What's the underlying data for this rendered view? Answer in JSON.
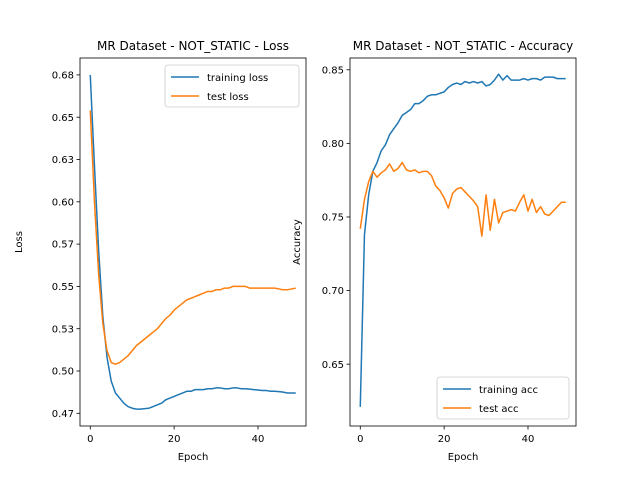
{
  "chart_data": [
    {
      "type": "line",
      "title": "MR Dataset - NOT_STATIC - Loss",
      "xlabel": "Epoch",
      "ylabel": "Loss",
      "xlim": [
        -2.45,
        51.45
      ],
      "ylim": [
        0.4675,
        0.685
      ],
      "xticks": [
        0,
        20,
        40
      ],
      "yticks": [
        0.475,
        0.5,
        0.525,
        0.55,
        0.575,
        0.6,
        0.625,
        0.65,
        0.675
      ],
      "grid": false,
      "legend": "top-right",
      "x": [
        0,
        1,
        2,
        3,
        4,
        5,
        6,
        7,
        8,
        9,
        10,
        11,
        12,
        13,
        14,
        15,
        16,
        17,
        18,
        19,
        20,
        21,
        22,
        23,
        24,
        25,
        26,
        27,
        28,
        29,
        30,
        31,
        32,
        33,
        34,
        35,
        36,
        37,
        38,
        39,
        40,
        41,
        42,
        43,
        44,
        45,
        46,
        47,
        48,
        49
      ],
      "series": [
        {
          "name": "training loss",
          "color": "#1f77b4",
          "values": [
            0.675,
            0.621,
            0.571,
            0.532,
            0.508,
            0.494,
            0.487,
            0.484,
            0.481,
            0.479,
            0.478,
            0.4775,
            0.4775,
            0.4778,
            0.478,
            0.479,
            0.48,
            0.481,
            0.483,
            0.484,
            0.485,
            0.486,
            0.487,
            0.488,
            0.488,
            0.489,
            0.489,
            0.489,
            0.4895,
            0.4895,
            0.49,
            0.49,
            0.4895,
            0.4895,
            0.49,
            0.49,
            0.4895,
            0.4895,
            0.4893,
            0.489,
            0.4888,
            0.4885,
            0.4885,
            0.488,
            0.488,
            0.4878,
            0.4875,
            0.487,
            0.487,
            0.487
          ]
        },
        {
          "name": "test loss",
          "color": "#ff7f0e",
          "values": [
            0.654,
            0.6,
            0.557,
            0.528,
            0.512,
            0.505,
            0.504,
            0.505,
            0.507,
            0.509,
            0.512,
            0.515,
            0.517,
            0.519,
            0.521,
            0.523,
            0.525,
            0.528,
            0.531,
            0.533,
            0.536,
            0.538,
            0.54,
            0.542,
            0.543,
            0.544,
            0.545,
            0.546,
            0.547,
            0.547,
            0.548,
            0.548,
            0.549,
            0.549,
            0.55,
            0.55,
            0.55,
            0.55,
            0.549,
            0.549,
            0.549,
            0.549,
            0.549,
            0.549,
            0.549,
            0.5485,
            0.548,
            0.548,
            0.5485,
            0.549
          ]
        }
      ]
    },
    {
      "type": "line",
      "title": "MR Dataset - NOT_STATIC - Accuracy",
      "xlabel": "Epoch",
      "ylabel": "Accuracy",
      "xlim": [
        -2.45,
        51.45
      ],
      "ylim": [
        0.608,
        0.858
      ],
      "xticks": [
        0,
        20,
        40
      ],
      "yticks": [
        0.65,
        0.7,
        0.75,
        0.8,
        0.85
      ],
      "grid": false,
      "legend": "bottom-right",
      "x": [
        0,
        1,
        2,
        3,
        4,
        5,
        6,
        7,
        8,
        9,
        10,
        11,
        12,
        13,
        14,
        15,
        16,
        17,
        18,
        19,
        20,
        21,
        22,
        23,
        24,
        25,
        26,
        27,
        28,
        29,
        30,
        31,
        32,
        33,
        34,
        35,
        36,
        37,
        38,
        39,
        40,
        41,
        42,
        43,
        44,
        45,
        46,
        47,
        48,
        49
      ],
      "series": [
        {
          "name": "training acc",
          "color": "#1f77b4",
          "values": [
            0.621,
            0.738,
            0.765,
            0.781,
            0.787,
            0.795,
            0.799,
            0.806,
            0.81,
            0.814,
            0.819,
            0.821,
            0.823,
            0.827,
            0.827,
            0.829,
            0.832,
            0.833,
            0.833,
            0.834,
            0.835,
            0.838,
            0.84,
            0.841,
            0.84,
            0.842,
            0.841,
            0.842,
            0.841,
            0.842,
            0.839,
            0.84,
            0.843,
            0.847,
            0.843,
            0.846,
            0.843,
            0.843,
            0.843,
            0.844,
            0.843,
            0.844,
            0.844,
            0.843,
            0.845,
            0.845,
            0.845,
            0.844,
            0.844,
            0.844
          ]
        },
        {
          "name": "test acc",
          "color": "#ff7f0e",
          "values": [
            0.742,
            0.762,
            0.774,
            0.781,
            0.777,
            0.78,
            0.782,
            0.786,
            0.781,
            0.783,
            0.787,
            0.782,
            0.781,
            0.782,
            0.78,
            0.781,
            0.781,
            0.778,
            0.771,
            0.768,
            0.763,
            0.756,
            0.766,
            0.769,
            0.77,
            0.767,
            0.764,
            0.761,
            0.757,
            0.737,
            0.765,
            0.741,
            0.762,
            0.746,
            0.753,
            0.754,
            0.755,
            0.754,
            0.76,
            0.765,
            0.754,
            0.762,
            0.753,
            0.757,
            0.752,
            0.751,
            0.754,
            0.757,
            0.76,
            0.76
          ]
        }
      ]
    }
  ]
}
